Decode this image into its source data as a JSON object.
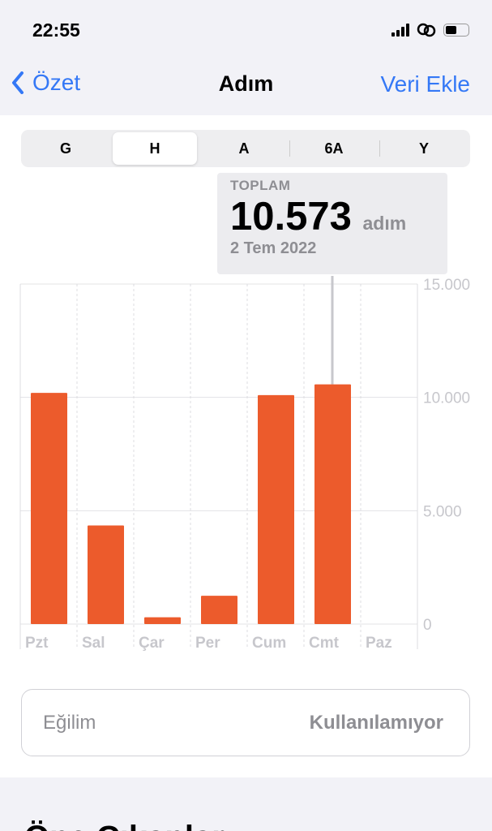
{
  "status": {
    "time": "22:55"
  },
  "nav": {
    "back": "Özet",
    "title": "Adım",
    "add": "Veri Ekle"
  },
  "segments": [
    "G",
    "H",
    "A",
    "6A",
    "Y"
  ],
  "selected_segment": "H",
  "tooltip": {
    "label": "TOPLAM",
    "value": "10.573",
    "unit": "adım",
    "date": "2 Tem 2022"
  },
  "chart_data": {
    "type": "bar",
    "categories": [
      "Pzt",
      "Sal",
      "Çar",
      "Per",
      "Cum",
      "Cmt",
      "Paz"
    ],
    "values": [
      10200,
      4350,
      300,
      1250,
      10100,
      10573,
      0
    ],
    "yticks": [
      "15.000",
      "10.000",
      "5.000",
      "0"
    ],
    "ylim": [
      0,
      15000
    ],
    "grid": true,
    "highlighted": "Cmt",
    "color": "#ec5b2c"
  },
  "trend": {
    "label": "Eğilim",
    "value": "Kullanılamıyor"
  },
  "section": {
    "title": "Öne Çıkanlar"
  }
}
